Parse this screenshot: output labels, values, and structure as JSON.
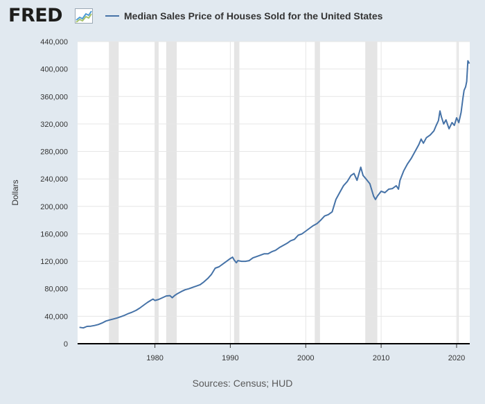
{
  "brand": {
    "logo_text": "FRED",
    "logo_icon": "fred-graph-icon"
  },
  "colors": {
    "series": "#4572a7",
    "plot_bg": "#ffffff",
    "page_bg": "#e1e9f0",
    "recession": "#e5e5e5"
  },
  "footer": {
    "sources": "Sources: Census; HUD"
  },
  "chart_data": {
    "type": "line",
    "title": "",
    "ylabel": "Dollars",
    "xlim": [
      1969.75,
      2021.75
    ],
    "ylim": [
      0,
      440000
    ],
    "grid": true,
    "legend": {
      "position": "top",
      "entries": [
        "Median Sales Price of Houses Sold for the United States"
      ]
    },
    "xticks": [
      {
        "value": 1980,
        "label": "1980"
      },
      {
        "value": 1990,
        "label": "1990"
      },
      {
        "value": 2000,
        "label": "2000"
      },
      {
        "value": 2010,
        "label": "2010"
      },
      {
        "value": 2020,
        "label": "2020"
      }
    ],
    "yticks": [
      {
        "value": 0,
        "label": "0"
      },
      {
        "value": 40000,
        "label": "40,000"
      },
      {
        "value": 80000,
        "label": "80,000"
      },
      {
        "value": 120000,
        "label": "120,000"
      },
      {
        "value": 160000,
        "label": "160,000"
      },
      {
        "value": 200000,
        "label": "200,000"
      },
      {
        "value": 240000,
        "label": "240,000"
      },
      {
        "value": 280000,
        "label": "280,000"
      },
      {
        "value": 320000,
        "label": "320,000"
      },
      {
        "value": 360000,
        "label": "360,000"
      },
      {
        "value": 400000,
        "label": "400,000"
      },
      {
        "value": 440000,
        "label": "440,000"
      }
    ],
    "recessions": [
      [
        1973.9,
        1975.2
      ],
      [
        1980.0,
        1980.5
      ],
      [
        1981.5,
        1982.9
      ],
      [
        1990.5,
        1991.2
      ],
      [
        2001.2,
        2001.9
      ],
      [
        2007.9,
        2009.5
      ],
      [
        2020.1,
        2020.3
      ]
    ],
    "series": [
      {
        "name": "Median Sales Price of Houses Sold for the United States",
        "points": [
          [
            1970.0,
            23900
          ],
          [
            1970.5,
            23000
          ],
          [
            1971.0,
            25200
          ],
          [
            1971.5,
            25500
          ],
          [
            1972.0,
            26500
          ],
          [
            1972.5,
            28000
          ],
          [
            1973.0,
            30200
          ],
          [
            1973.5,
            33000
          ],
          [
            1974.0,
            34600
          ],
          [
            1974.5,
            36000
          ],
          [
            1975.0,
            37500
          ],
          [
            1975.5,
            39500
          ],
          [
            1976.0,
            41500
          ],
          [
            1976.5,
            44000
          ],
          [
            1977.0,
            46000
          ],
          [
            1977.5,
            48500
          ],
          [
            1978.0,
            52000
          ],
          [
            1978.5,
            56000
          ],
          [
            1979.0,
            60000
          ],
          [
            1979.5,
            63500
          ],
          [
            1979.75,
            65000
          ],
          [
            1980.0,
            63000
          ],
          [
            1980.5,
            64500
          ],
          [
            1981.0,
            67000
          ],
          [
            1981.5,
            69500
          ],
          [
            1982.0,
            70000
          ],
          [
            1982.3,
            67000
          ],
          [
            1982.6,
            70000
          ],
          [
            1983.0,
            73000
          ],
          [
            1983.5,
            76000
          ],
          [
            1984.0,
            78500
          ],
          [
            1984.5,
            80000
          ],
          [
            1985.0,
            82000
          ],
          [
            1985.5,
            84000
          ],
          [
            1986.0,
            86000
          ],
          [
            1986.5,
            90000
          ],
          [
            1987.0,
            95000
          ],
          [
            1987.5,
            101000
          ],
          [
            1988.0,
            110000
          ],
          [
            1988.5,
            112000
          ],
          [
            1989.0,
            116000
          ],
          [
            1989.5,
            120000
          ],
          [
            1990.0,
            124000
          ],
          [
            1990.3,
            126000
          ],
          [
            1990.5,
            122000
          ],
          [
            1990.8,
            118000
          ],
          [
            1991.0,
            121000
          ],
          [
            1991.5,
            120000
          ],
          [
            1992.0,
            120000
          ],
          [
            1992.5,
            121000
          ],
          [
            1993.0,
            125000
          ],
          [
            1993.5,
            127000
          ],
          [
            1994.0,
            129000
          ],
          [
            1994.5,
            131000
          ],
          [
            1995.0,
            131000
          ],
          [
            1995.5,
            134000
          ],
          [
            1996.0,
            136000
          ],
          [
            1996.5,
            140000
          ],
          [
            1997.0,
            143000
          ],
          [
            1997.5,
            146000
          ],
          [
            1998.0,
            150000
          ],
          [
            1998.5,
            152000
          ],
          [
            1999.0,
            158000
          ],
          [
            1999.5,
            160000
          ],
          [
            2000.0,
            164000
          ],
          [
            2000.5,
            168000
          ],
          [
            2001.0,
            172000
          ],
          [
            2001.5,
            175000
          ],
          [
            2002.0,
            180000
          ],
          [
            2002.5,
            186000
          ],
          [
            2003.0,
            188000
          ],
          [
            2003.5,
            192000
          ],
          [
            2004.0,
            210000
          ],
          [
            2004.5,
            220000
          ],
          [
            2005.0,
            230000
          ],
          [
            2005.5,
            236000
          ],
          [
            2006.0,
            245000
          ],
          [
            2006.4,
            248000
          ],
          [
            2006.8,
            238000
          ],
          [
            2007.3,
            257000
          ],
          [
            2007.6,
            245000
          ],
          [
            2008.0,
            240000
          ],
          [
            2008.5,
            233000
          ],
          [
            2009.0,
            215000
          ],
          [
            2009.25,
            210000
          ],
          [
            2009.5,
            215000
          ],
          [
            2010.0,
            222000
          ],
          [
            2010.5,
            220000
          ],
          [
            2011.0,
            225000
          ],
          [
            2011.5,
            226000
          ],
          [
            2012.0,
            230000
          ],
          [
            2012.3,
            225000
          ],
          [
            2012.5,
            238000
          ],
          [
            2013.0,
            252000
          ],
          [
            2013.5,
            262000
          ],
          [
            2014.0,
            270000
          ],
          [
            2014.5,
            280000
          ],
          [
            2015.0,
            290000
          ],
          [
            2015.3,
            298000
          ],
          [
            2015.6,
            292000
          ],
          [
            2016.0,
            300000
          ],
          [
            2016.5,
            304000
          ],
          [
            2017.0,
            310000
          ],
          [
            2017.3,
            318000
          ],
          [
            2017.6,
            325000
          ],
          [
            2017.8,
            339000
          ],
          [
            2018.0,
            330000
          ],
          [
            2018.3,
            320000
          ],
          [
            2018.6,
            326000
          ],
          [
            2019.0,
            313000
          ],
          [
            2019.4,
            322000
          ],
          [
            2019.7,
            318000
          ],
          [
            2020.0,
            329000
          ],
          [
            2020.3,
            322000
          ],
          [
            2020.6,
            337000
          ],
          [
            2020.85,
            358000
          ],
          [
            2021.0,
            369000
          ],
          [
            2021.2,
            374000
          ],
          [
            2021.35,
            382000
          ],
          [
            2021.5,
            412000
          ],
          [
            2021.7,
            408000
          ]
        ]
      }
    ]
  }
}
